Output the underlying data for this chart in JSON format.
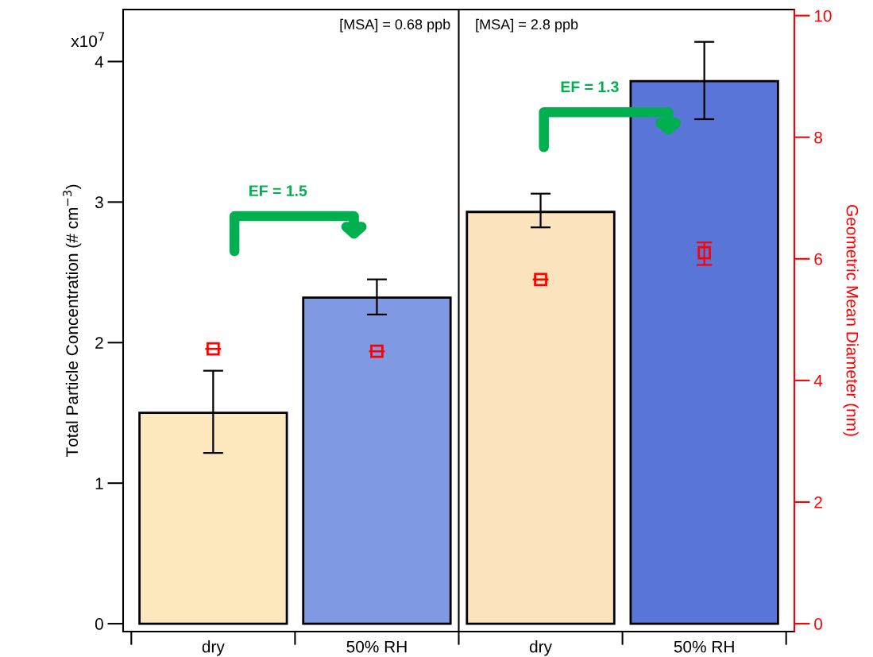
{
  "chart_data": {
    "type": "bar",
    "categories": [
      "dry",
      "50% RH",
      "dry",
      "50% RH"
    ],
    "ylabel": "Total Particle Concentration (# cm$^{−3}$)",
    "y2label": "Geometric Mean Diameter (nm)",
    "series": [
      {
        "colors": [
          "#fde8bd",
          "#8099e3",
          "#fbe3bd",
          "#5a75d8"
        ],
        "values": [
          1.5,
          2.32,
          2.93,
          3.86
        ],
        "errors": [
          [
            1.215,
            1.8
          ],
          [
            2.2,
            2.45
          ],
          [
            2.82,
            3.06
          ],
          [
            3.59,
            4.14
          ]
        ]
      },
      {
        "type": "scatter",
        "axis": "y2",
        "color": "#ff0000",
        "marker": "square",
        "values": [
          4.52,
          4.48,
          5.66,
          6.1
        ],
        "errors": [
          null,
          null,
          null,
          [
            5.9,
            6.27
          ]
        ]
      }
    ],
    "ylim": [
      -0.056,
      4.37
    ],
    "yticks": [
      0,
      1,
      2,
      3,
      4
    ],
    "y2lim": [
      -0.13,
      10.1
    ],
    "y2ticks": [
      0,
      2,
      4,
      6,
      8,
      10
    ],
    "annotations": [
      "[MSA] = 0.68 ppb",
      "[MSA] = 2.8 ppb",
      "EF = 1.5",
      "EF = 1.3",
      "x10$^{7}$"
    ],
    "grid": false,
    "legend": false
  }
}
